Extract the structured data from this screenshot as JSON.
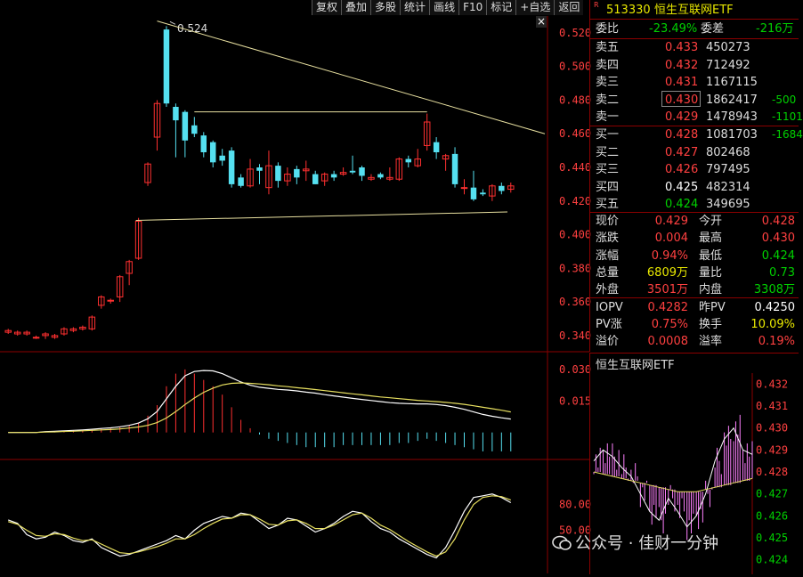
{
  "toolbar": [
    "复权",
    "叠加",
    "多股",
    "统计",
    "画线",
    "F10",
    "标记",
    "+自选",
    "返回"
  ],
  "close_glyph": "×",
  "chart": {
    "price_labels": [
      "0.520",
      "0.500",
      "0.480",
      "0.460",
      "0.440",
      "0.420",
      "0.400",
      "0.380",
      "0.360",
      "0.340"
    ],
    "price_range": [
      0.332,
      0.53
    ],
    "high_annotation": "0.524",
    "macd_labels": [
      "0.030",
      "0.015"
    ],
    "kdj_labels": [
      "80.00",
      "50.00"
    ],
    "candles": [
      [
        0.342,
        0.343,
        0.341,
        0.344
      ],
      [
        0.341,
        0.342,
        0.34,
        0.343
      ],
      [
        0.341,
        0.342,
        0.34,
        0.343
      ],
      [
        0.339,
        0.339,
        0.338,
        0.34
      ],
      [
        0.34,
        0.341,
        0.338,
        0.342
      ],
      [
        0.339,
        0.34,
        0.338,
        0.341
      ],
      [
        0.341,
        0.344,
        0.34,
        0.345
      ],
      [
        0.343,
        0.344,
        0.342,
        0.345
      ],
      [
        0.344,
        0.345,
        0.343,
        0.346
      ],
      [
        0.344,
        0.351,
        0.343,
        0.352
      ],
      [
        0.358,
        0.363,
        0.356,
        0.364
      ],
      [
        0.361,
        0.361,
        0.359,
        0.362
      ],
      [
        0.363,
        0.375,
        0.36,
        0.376
      ],
      [
        0.377,
        0.384,
        0.37,
        0.385
      ],
      [
        0.386,
        0.408,
        0.385,
        0.41
      ],
      [
        0.431,
        0.442,
        0.429,
        0.443
      ],
      [
        0.458,
        0.478,
        0.45,
        0.48
      ],
      [
        0.522,
        0.478,
        0.476,
        0.524
      ],
      [
        0.476,
        0.468,
        0.446,
        0.478
      ],
      [
        0.473,
        0.456,
        0.446,
        0.474
      ],
      [
        0.465,
        0.46,
        0.458,
        0.47
      ],
      [
        0.459,
        0.449,
        0.446,
        0.461
      ],
      [
        0.455,
        0.443,
        0.44,
        0.456
      ],
      [
        0.447,
        0.444,
        0.441,
        0.451
      ],
      [
        0.45,
        0.43,
        0.428,
        0.452
      ],
      [
        0.434,
        0.429,
        0.428,
        0.436
      ],
      [
        0.429,
        0.439,
        0.428,
        0.445
      ],
      [
        0.44,
        0.438,
        0.43,
        0.442
      ],
      [
        0.428,
        0.441,
        0.424,
        0.45
      ],
      [
        0.441,
        0.432,
        0.428,
        0.443
      ],
      [
        0.432,
        0.436,
        0.429,
        0.44
      ],
      [
        0.439,
        0.434,
        0.43,
        0.441
      ],
      [
        0.438,
        0.439,
        0.432,
        0.444
      ],
      [
        0.436,
        0.43,
        0.43,
        0.438
      ],
      [
        0.432,
        0.436,
        0.429,
        0.437
      ],
      [
        0.436,
        0.434,
        0.432,
        0.438
      ],
      [
        0.436,
        0.437,
        0.435,
        0.44
      ],
      [
        0.438,
        0.437,
        0.436,
        0.447
      ],
      [
        0.44,
        0.435,
        0.432,
        0.441
      ],
      [
        0.433,
        0.434,
        0.432,
        0.436
      ],
      [
        0.436,
        0.434,
        0.433,
        0.437
      ],
      [
        0.433,
        0.434,
        0.432,
        0.44
      ],
      [
        0.433,
        0.445,
        0.432,
        0.446
      ],
      [
        0.445,
        0.443,
        0.44,
        0.447
      ],
      [
        0.441,
        0.445,
        0.44,
        0.451
      ],
      [
        0.453,
        0.467,
        0.45,
        0.472
      ],
      [
        0.455,
        0.449,
        0.445,
        0.458
      ],
      [
        0.445,
        0.447,
        0.438,
        0.448
      ],
      [
        0.448,
        0.43,
        0.428,
        0.452
      ],
      [
        0.428,
        0.428,
        0.424,
        0.433
      ],
      [
        0.428,
        0.421,
        0.42,
        0.438
      ],
      [
        0.425,
        0.424,
        0.423,
        0.427
      ],
      [
        0.423,
        0.429,
        0.42,
        0.43
      ],
      [
        0.429,
        0.426,
        0.424,
        0.431
      ],
      [
        0.427,
        0.429,
        0.425,
        0.431
      ]
    ],
    "macd_hist": [
      0,
      0,
      0,
      0,
      0.0004,
      0.0005,
      0.0008,
      0.001,
      0.0012,
      0.0016,
      0.002,
      0.0022,
      0.0026,
      0.0032,
      0.0045,
      0.008,
      0.013,
      0.022,
      0.028,
      0.03,
      0.028,
      0.025,
      0.022,
      0.018,
      0.012,
      0.006,
      0.002,
      -0.001,
      -0.003,
      -0.004,
      -0.005,
      -0.006,
      -0.007,
      -0.007,
      -0.007,
      -0.007,
      -0.006,
      -0.006,
      -0.006,
      -0.006,
      -0.006,
      -0.006,
      -0.005,
      -0.005,
      -0.004,
      -0.003,
      -0.004,
      -0.005,
      -0.006,
      -0.007,
      -0.008,
      -0.009,
      -0.009,
      -0.009,
      -0.009
    ],
    "macd_dif": [
      0,
      0,
      0,
      0,
      0.0004,
      0.0006,
      0.0008,
      0.001,
      0.0012,
      0.0015,
      0.0019,
      0.0022,
      0.0027,
      0.0034,
      0.0045,
      0.0065,
      0.01,
      0.016,
      0.022,
      0.027,
      0.029,
      0.0295,
      0.0293,
      0.028,
      0.026,
      0.024,
      0.0225,
      0.0215,
      0.021,
      0.0205,
      0.0202,
      0.0198,
      0.0192,
      0.0187,
      0.018,
      0.0174,
      0.0168,
      0.0162,
      0.0157,
      0.0152,
      0.0147,
      0.0142,
      0.0139,
      0.0137,
      0.0136,
      0.0136,
      0.0133,
      0.0128,
      0.012,
      0.011,
      0.0098,
      0.0086,
      0.0077,
      0.007,
      0.0064
    ],
    "macd_dea": [
      0,
      0,
      0,
      0,
      0.0002,
      0.0003,
      0.0005,
      0.0006,
      0.0008,
      0.001,
      0.0012,
      0.0014,
      0.0017,
      0.0021,
      0.0026,
      0.0034,
      0.0047,
      0.0069,
      0.0099,
      0.0133,
      0.0164,
      0.0191,
      0.0211,
      0.0226,
      0.0234,
      0.0236,
      0.0234,
      0.0231,
      0.0227,
      0.0222,
      0.0218,
      0.0213,
      0.0209,
      0.0204,
      0.0199,
      0.0194,
      0.0189,
      0.0184,
      0.0179,
      0.0174,
      0.0169,
      0.0165,
      0.0161,
      0.0157,
      0.0153,
      0.015,
      0.0147,
      0.0143,
      0.0139,
      0.0134,
      0.0127,
      0.012,
      0.0113,
      0.0106,
      0.0098
    ],
    "macd_range": [
      -0.012,
      0.038
    ],
    "kdj_k": [
      62,
      58,
      45,
      40,
      42,
      48,
      44,
      38,
      36,
      40,
      30,
      25,
      20,
      22,
      26,
      30,
      34,
      38,
      44,
      40,
      50,
      58,
      62,
      66,
      64,
      70,
      68,
      60,
      52,
      56,
      64,
      62,
      55,
      48,
      52,
      58,
      66,
      72,
      70,
      60,
      52,
      48,
      40,
      34,
      28,
      22,
      18,
      30,
      50,
      72,
      88,
      90,
      92,
      88,
      82
    ],
    "kdj_d": [
      60,
      57,
      50,
      44,
      43,
      46,
      45,
      41,
      38,
      39,
      34,
      29,
      24,
      23,
      25,
      28,
      31,
      35,
      40,
      40,
      45,
      52,
      58,
      63,
      64,
      68,
      68,
      63,
      57,
      56,
      61,
      62,
      58,
      52,
      52,
      56,
      62,
      68,
      70,
      64,
      56,
      51,
      44,
      37,
      31,
      25,
      20,
      25,
      40,
      62,
      80,
      88,
      90,
      89,
      85
    ],
    "kdj_range": [
      0,
      130
    ]
  },
  "quote": {
    "code": "513330",
    "name": "恒生互联网ETF",
    "weibi_label": "委比",
    "weibi_value": "-23.49%",
    "weicha_label": "委差",
    "weicha_value": "-216万",
    "asks": [
      {
        "label": "卖五",
        "price": "0.433",
        "vol": "450273",
        "chg": ""
      },
      {
        "label": "卖四",
        "price": "0.432",
        "vol": "712492",
        "chg": ""
      },
      {
        "label": "卖三",
        "price": "0.431",
        "vol": "1167115",
        "chg": ""
      },
      {
        "label": "卖二",
        "price": "0.430",
        "vol": "1862417",
        "chg": "-500"
      },
      {
        "label": "卖一",
        "price": "0.429",
        "vol": "1478943",
        "chg": "-1101"
      }
    ],
    "bids": [
      {
        "label": "买一",
        "price": "0.428",
        "vol": "1081703",
        "chg": "-1684"
      },
      {
        "label": "买二",
        "price": "0.427",
        "vol": "802468",
        "chg": ""
      },
      {
        "label": "买三",
        "price": "0.426",
        "vol": "797495",
        "chg": ""
      },
      {
        "label": "买四",
        "price": "0.425",
        "vol": "482314",
        "chg": ""
      },
      {
        "label": "买五",
        "price": "0.424",
        "vol": "349695",
        "chg": ""
      }
    ],
    "stats": [
      {
        "l1": "现价",
        "v1": "0.429",
        "c1": "red",
        "l2": "今开",
        "v2": "0.428",
        "c2": "red"
      },
      {
        "l1": "涨跌",
        "v1": "0.004",
        "c1": "red",
        "l2": "最高",
        "v2": "0.430",
        "c2": "red"
      },
      {
        "l1": "涨幅",
        "v1": "0.94%",
        "c1": "red",
        "l2": "最低",
        "v2": "0.424",
        "c2": "green"
      },
      {
        "l1": "总量",
        "v1": "6809万",
        "c1": "yellow",
        "l2": "量比",
        "v2": "0.73",
        "c2": "green"
      },
      {
        "l1": "外盘",
        "v1": "3501万",
        "c1": "red",
        "l2": "内盘",
        "v2": "3308万",
        "c2": "green"
      },
      {
        "l1": "IOPV",
        "v1": "0.4282",
        "c1": "red",
        "l2": "昨PV",
        "v2": "0.4250",
        "c2": "white"
      },
      {
        "l1": "PV涨",
        "v1": "0.75%",
        "c1": "red",
        "l2": "换手",
        "v2": "10.09%",
        "c2": "yellow"
      },
      {
        "l1": "溢价",
        "v1": "0.0008",
        "c1": "red",
        "l2": "溢率",
        "v2": "0.19%",
        "c2": "red"
      }
    ]
  },
  "mini": {
    "title": "恒生互联网ETF",
    "labels": [
      "0.432",
      "0.431",
      "0.430",
      "0.429",
      "0.428",
      "0.427",
      "0.426",
      "0.425",
      "0.424"
    ],
    "range": [
      0.4235,
      0.4325
    ],
    "avg_line": [
      0.428,
      0.4279,
      0.4278,
      0.4277,
      0.4276,
      0.4275,
      0.4274,
      0.4273,
      0.4272,
      0.4271,
      0.4271,
      0.4271,
      0.4272,
      0.4273,
      0.4274,
      0.4275,
      0.4276,
      0.4277
    ],
    "price_line": [
      0.4285,
      0.429,
      0.4287,
      0.4282,
      0.4278,
      0.427,
      0.4262,
      0.4258,
      0.4268,
      0.4262,
      0.4255,
      0.426,
      0.427,
      0.4285,
      0.4295,
      0.43,
      0.429,
      0.4288
    ]
  },
  "watermark": "公众号 · 佳财一分钟",
  "colors": {
    "up": "#ff3030",
    "down": "#55e0f0",
    "grid_red": "#8b0000",
    "trend": "#e8e0a0",
    "mini_price": "#ff80ff",
    "mini_avg": "#ffffff"
  }
}
